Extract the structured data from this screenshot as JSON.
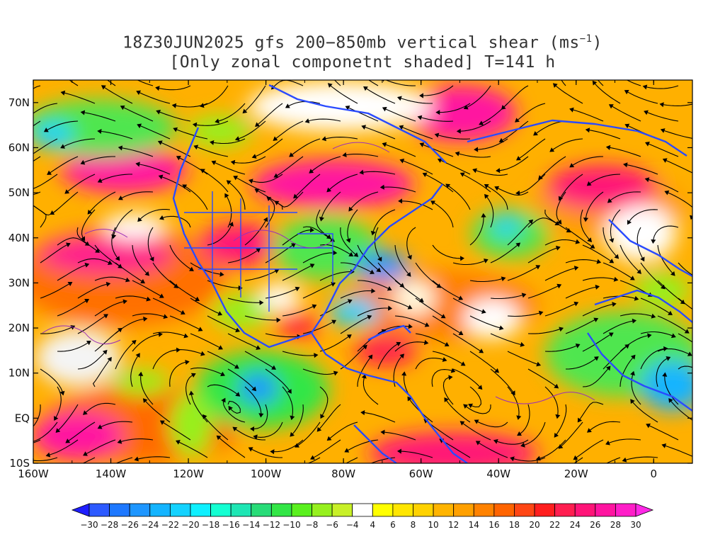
{
  "title": {
    "line1_prefix": "18Z30JUN2025 gfs 200−850mb vertical shear (ms",
    "line1_sup": "−1",
    "line1_suffix": ")",
    "line2": "[Only zonal componetnt shaded] T=141 h"
  },
  "map": {
    "lon_range": [
      -160,
      10
    ],
    "lat_range": [
      -10,
      75
    ],
    "lon_ticks": [
      {
        "value": -160,
        "label": "160W"
      },
      {
        "value": -140,
        "label": "140W"
      },
      {
        "value": -120,
        "label": "120W"
      },
      {
        "value": -100,
        "label": "100W"
      },
      {
        "value": -80,
        "label": "80W"
      },
      {
        "value": -60,
        "label": "60W"
      },
      {
        "value": -40,
        "label": "40W"
      },
      {
        "value": -20,
        "label": "20W"
      },
      {
        "value": 0,
        "label": "0"
      }
    ],
    "lat_ticks": [
      {
        "value": 70,
        "label": "70N"
      },
      {
        "value": 60,
        "label": "60N"
      },
      {
        "value": 50,
        "label": "50N"
      },
      {
        "value": 40,
        "label": "40N"
      },
      {
        "value": 30,
        "label": "30N"
      },
      {
        "value": 20,
        "label": "20N"
      },
      {
        "value": 10,
        "label": "10N"
      },
      {
        "value": 0,
        "label": "EQ"
      },
      {
        "value": -10,
        "label": "10S"
      }
    ]
  },
  "colorbar": {
    "levels": [
      "-30",
      "-28",
      "-26",
      "-24",
      "-22",
      "-20",
      "-18",
      "-16",
      "-14",
      "-12",
      "-10",
      "-8",
      "-6",
      "-4",
      "4",
      "6",
      "8",
      "10",
      "12",
      "14",
      "16",
      "18",
      "20",
      "22",
      "24",
      "26",
      "28",
      "30"
    ],
    "colors": [
      "#1e1eff",
      "#2d5aff",
      "#1e78ff",
      "#1e96ff",
      "#14b4ff",
      "#14d2ff",
      "#0ff0ff",
      "#14ffd2",
      "#1ee6b4",
      "#28dc78",
      "#32e646",
      "#5af01e",
      "#96f01e",
      "#c8f028",
      "#ffffff",
      "#ffff00",
      "#ffe600",
      "#ffd200",
      "#ffb400",
      "#ffa000",
      "#ff8200",
      "#ff6400",
      "#ff4614",
      "#ff1e1e",
      "#ff1e50",
      "#ff1478",
      "#ff14a0",
      "#ff1ec8",
      "#ff28e6"
    ]
  }
}
